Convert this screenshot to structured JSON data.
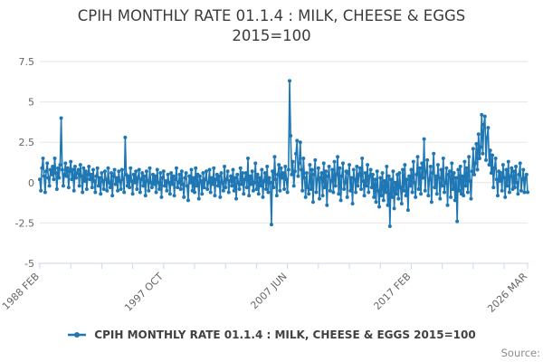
{
  "title": {
    "line1": "CPIH MONTHLY RATE 01.1.4 : MILK, CHEESE & EGGS",
    "line2": "2015=100"
  },
  "legend": {
    "label": "CPIH MONTHLY RATE 01.1.4 : MILK, CHEESE & EGGS 2015=100"
  },
  "source": {
    "label": "Source:"
  },
  "colors": {
    "line": "#1f77b4",
    "grid": "#e6e6e6",
    "axis": "#ccd6eb",
    "tick_label": "#666666",
    "title": "#3b3b3b"
  },
  "chart_data": {
    "type": "line",
    "title": "CPIH MONTHLY RATE 01.1.4 : MILK, CHEESE & EGGS 2015=100",
    "marker": "circle",
    "legend_position": "bottom",
    "grid": "horizontal",
    "ylim": [
      -5,
      7.5
    ],
    "y_ticks": [
      7.5,
      5,
      2.5,
      0,
      -2.5,
      -5
    ],
    "y_tick_labels": [
      "7.5",
      "5",
      "2.5",
      "0",
      "-2.5",
      "-5"
    ],
    "x_start": "1988 FEB",
    "x_end": "2026 MAR",
    "x_minor_tick_interval_months": 29,
    "x_ticks": [
      {
        "month_index": 0,
        "label": "1988 FEB"
      },
      {
        "month_index": 116,
        "label": "1997 OCT"
      },
      {
        "month_index": 232,
        "label": "2007 JUN"
      },
      {
        "month_index": 348,
        "label": "2017 FEB"
      },
      {
        "month_index": 457,
        "label": "2026 MAR"
      }
    ],
    "values": [
      0.2,
      -0.5,
      0.9,
      1.5,
      0.4,
      -0.6,
      0.7,
      1.2,
      0.3,
      -0.2,
      0.8,
      0.5,
      1.0,
      0.2,
      1.5,
      0.6,
      -0.4,
      0.9,
      0.3,
      1.1,
      4.0,
      0.8,
      -0.2,
      0.5,
      1.2,
      0.4,
      0.9,
      -0.3,
      0.7,
      1.3,
      0.2,
      0.8,
      -0.5,
      1.0,
      0.3,
      0.6,
      0.8,
      -0.2,
      1.1,
      0.4,
      -0.6,
      0.9,
      0.1,
      0.7,
      -0.4,
      0.5,
      1.0,
      0.2,
      0.5,
      -0.3,
      0.8,
      0.1,
      -0.6,
      0.4,
      0.9,
      -0.2,
      0.3,
      -0.7,
      0.6,
      0.1,
      -0.4,
      0.7,
      0.2,
      -0.5,
      0.9,
      0.0,
      -0.3,
      0.6,
      -0.8,
      0.4,
      0.8,
      -0.1,
      0.3,
      -0.5,
      0.7,
      0.1,
      -0.4,
      0.8,
      0.2,
      -0.6,
      2.8,
      0.5,
      -0.2,
      0.4,
      -0.3,
      0.9,
      0.1,
      -0.7,
      0.5,
      0.0,
      0.7,
      -0.4,
      0.3,
      0.8,
      -0.6,
      0.2,
      0.6,
      -0.2,
      0.4,
      -0.8,
      0.7,
      0.1,
      -0.5,
      0.9,
      0.0,
      -0.3,
      0.5,
      -0.1,
      0.4,
      -0.6,
      0.8,
      0.0,
      -0.4,
      0.6,
      -0.9,
      0.3,
      0.7,
      -0.2,
      0.1,
      -0.5,
      0.5,
      0.0,
      -0.7,
      0.6,
      -0.1,
      0.4,
      -0.8,
      0.2,
      0.9,
      -0.3,
      0.0,
      0.5,
      -0.4,
      0.7,
      -0.1,
      -0.9,
      0.3,
      0.6,
      -0.2,
      -1.1,
      0.4,
      0.0,
      0.8,
      -0.5,
      0.3,
      -0.6,
      0.9,
      -0.2,
      0.5,
      -1.0,
      0.4,
      0.1,
      -0.7,
      0.6,
      -0.3,
      0.2,
      0.7,
      -0.4,
      0.0,
      0.8,
      -0.6,
      0.3,
      -0.1,
      0.9,
      -0.8,
      0.2,
      0.5,
      -0.2,
      0.4,
      -0.9,
      0.6,
      0.0,
      -0.5,
      1.0,
      -0.3,
      0.2,
      0.7,
      -0.6,
      0.1,
      0.4,
      -0.2,
      0.8,
      -0.5,
      0.3,
      -1.0,
      0.5,
      0.0,
      -0.4,
      0.9,
      -0.1,
      0.6,
      -0.7,
      0.2,
      0.6,
      -0.3,
      1.5,
      -0.8,
      0.4,
      -0.1,
      0.7,
      -0.5,
      0.0,
      1.2,
      -0.4,
      0.5,
      -0.7,
      0.3,
      -0.2,
      0.8,
      -0.9,
      0.1,
      0.6,
      -0.4,
      1.0,
      -0.6,
      0.3,
      0.0,
      -2.6,
      0.7,
      -0.3,
      1.6,
      0.2,
      -0.8,
      0.5,
      1.1,
      -0.5,
      0.9,
      0.3,
      0.6,
      -0.4,
      1.0,
      0.2,
      -0.6,
      0.8,
      6.3,
      2.9,
      0.5,
      1.3,
      -0.2,
      0.7,
      1.8,
      2.6,
      0.4,
      1.2,
      2.5,
      0.8,
      -0.5,
      1.5,
      0.3,
      -0.9,
      0.6,
      -0.3,
      -0.7,
      1.1,
      -0.4,
      0.8,
      -1.2,
      0.5,
      1.4,
      -0.6,
      0.2,
      0.9,
      -1.0,
      0.3,
      0.6,
      -0.8,
      1.2,
      -0.3,
      0.7,
      -1.4,
      0.4,
      1.0,
      -0.5,
      0.1,
      0.8,
      -0.6,
      1.3,
      -0.2,
      0.5,
      1.6,
      -0.7,
      0.9,
      -1.1,
      0.4,
      1.2,
      -0.4,
      0.0,
      0.7,
      -0.9,
      0.6,
      1.1,
      -0.5,
      0.3,
      -1.3,
      0.8,
      0.2,
      -0.6,
      1.0,
      -0.2,
      0.5,
      0.9,
      -0.4,
      1.5,
      0.1,
      -0.8,
      0.6,
      -0.2,
      1.1,
      -0.6,
      0.4,
      0.8,
      -0.3,
      0.5,
      -0.9,
      0.2,
      -1.2,
      0.7,
      -0.5,
      -1.5,
      0.3,
      -0.8,
      0.6,
      -1.1,
      0.1,
      -0.6,
      1.0,
      -1.4,
      0.4,
      -2.7,
      0.2,
      -0.9,
      0.7,
      -1.6,
      0.0,
      -0.7,
      0.5,
      -1.0,
      0.6,
      -0.3,
      -1.3,
      0.8,
      -0.5,
      1.1,
      -0.8,
      0.2,
      -1.7,
      0.4,
      -0.2,
      0.8,
      -0.6,
      1.3,
      0.0,
      -0.9,
      0.5,
      1.6,
      -0.4,
      0.9,
      -0.7,
      1.2,
      0.3,
      2.7,
      -0.5,
      0.7,
      1.4,
      -0.8,
      0.2,
      1.0,
      -1.2,
      0.6,
      1.8,
      -0.3,
      0.4,
      -0.7,
      1.1,
      0.3,
      -1.0,
      0.8,
      -0.2,
      1.5,
      -0.6,
      0.0,
      0.9,
      -1.4,
      0.5,
      0.7,
      -0.9,
      1.2,
      -0.4,
      0.6,
      -1.1,
      0.3,
      -2.4,
      0.8,
      -0.5,
      1.0,
      -0.7,
      0.4,
      -0.8,
      1.3,
      -0.2,
      0.9,
      -0.6,
      1.6,
      0.1,
      -1.0,
      0.7,
      2.1,
      0.5,
      1.2,
      2.4,
      0.8,
      3.0,
      1.5,
      2.2,
      4.2,
      1.8,
      3.6,
      4.1,
      1.4,
      2.8,
      3.4,
      1.1,
      2.0,
      0.6,
      1.7,
      -0.3,
      0.9,
      1.5,
      0.2,
      -0.8,
      0.7,
      0.1,
      0.6,
      -0.5,
      1.1,
      0.3,
      -0.9,
      0.8,
      -0.2,
      1.3,
      -0.6,
      0.4,
      0.9,
      -0.4,
      0.7,
      -0.3,
      1.0,
      0.0,
      -0.7,
      0.5,
      1.2,
      -0.5,
      0.2,
      0.8,
      -0.6,
      0.3,
      0.5,
      -0.6
    ]
  }
}
